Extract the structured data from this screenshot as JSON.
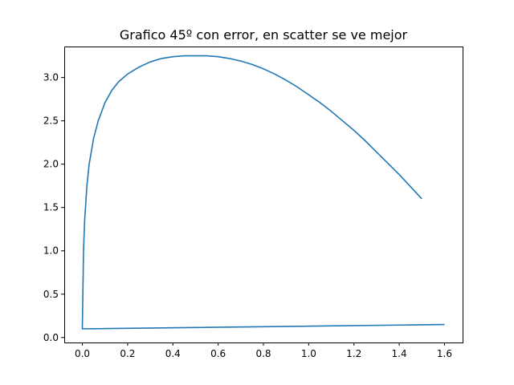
{
  "chart_data": {
    "type": "line",
    "title": "Grafico 45º con error, en scatter se ve mejor",
    "xlabel": "",
    "ylabel": "",
    "xlim": [
      -0.08,
      1.68
    ],
    "ylim": [
      -0.0575,
      3.3575
    ],
    "x_ticks": [
      0.0,
      0.2,
      0.4,
      0.6,
      0.8,
      1.0,
      1.2,
      1.4,
      1.6
    ],
    "x_tick_labels": [
      "0.0",
      "0.2",
      "0.4",
      "0.6",
      "0.8",
      "1.0",
      "1.2",
      "1.4",
      "1.6"
    ],
    "y_ticks": [
      0.0,
      0.5,
      1.0,
      1.5,
      2.0,
      2.5,
      3.0
    ],
    "y_tick_labels": [
      "0.0",
      "0.5",
      "1.0",
      "1.5",
      "2.0",
      "2.5",
      "3.0"
    ],
    "grid": false,
    "legend": "none",
    "line_color": "#1f77b4",
    "series": [
      {
        "x": [
          1.6,
          0.0,
          0.0,
          0.005,
          0.01,
          0.02,
          0.03,
          0.05,
          0.07,
          0.1,
          0.13,
          0.16,
          0.2,
          0.25,
          0.3,
          0.35,
          0.4,
          0.45,
          0.5,
          0.53,
          0.55,
          0.6,
          0.65,
          0.7,
          0.75,
          0.8,
          0.85,
          0.9,
          0.95,
          1.0,
          1.05,
          1.1,
          1.15,
          1.2,
          1.25,
          1.3,
          1.35,
          1.4,
          1.45,
          1.5
        ],
        "y": [
          0.15,
          0.1,
          0.1,
          1.0,
          1.35,
          1.75,
          2.0,
          2.3,
          2.5,
          2.71,
          2.85,
          2.95,
          3.04,
          3.12,
          3.18,
          3.22,
          3.24,
          3.25,
          3.25,
          3.25,
          3.25,
          3.24,
          3.22,
          3.19,
          3.15,
          3.1,
          3.04,
          2.97,
          2.89,
          2.8,
          2.71,
          2.61,
          2.5,
          2.39,
          2.27,
          2.14,
          2.01,
          1.88,
          1.74,
          1.6
        ]
      }
    ]
  }
}
